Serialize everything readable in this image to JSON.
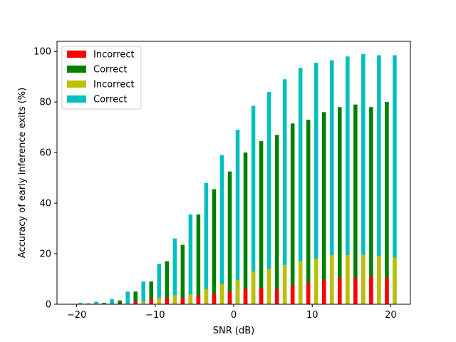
{
  "chart_data": {
    "type": "bar",
    "xlabel": "SNR (dB)",
    "ylabel": "Accuracy of early inference exits (%)",
    "xlim": [
      -22.5,
      22.5
    ],
    "ylim": [
      0,
      104
    ],
    "xticks": [
      -20,
      -10,
      0,
      10,
      20
    ],
    "yticks": [
      0,
      20,
      40,
      60,
      80,
      100
    ],
    "grid": false,
    "legend_position": "top-left",
    "x": [
      -20,
      -18,
      -16,
      -14,
      -12,
      -10,
      -8,
      -6,
      -4,
      -2,
      0,
      2,
      4,
      6,
      8,
      10,
      12,
      14,
      16,
      18,
      20
    ],
    "series": [
      {
        "name": "Incorrect",
        "color": "#ff0000",
        "values": [
          0,
          0,
          0,
          0.5,
          1,
          2,
          2.5,
          2.5,
          3.5,
          4,
          5,
          6,
          6.5,
          6,
          7.5,
          8.5,
          9.5,
          10.5,
          10.5,
          11,
          10.5
        ]
      },
      {
        "name": "Correct",
        "color": "#008000",
        "values": [
          0,
          0.3,
          0.5,
          1.5,
          5,
          9,
          17,
          23.5,
          35.5,
          45.5,
          52.5,
          60,
          64.5,
          67,
          71.5,
          73,
          76,
          78,
          79,
          78,
          80
        ]
      },
      {
        "name": "Incorrect",
        "color": "#bfbf00",
        "values": [
          0,
          0,
          0,
          0.3,
          1,
          2.5,
          3.5,
          4,
          6,
          8,
          9.5,
          13,
          14,
          15.5,
          17,
          18,
          19.5,
          19.5,
          19.5,
          19,
          18.5
        ]
      },
      {
        "name": "Correct",
        "color": "#00bfbf",
        "values": [
          0.5,
          1,
          2,
          5,
          9,
          16,
          26,
          35.5,
          48,
          59,
          69,
          78.5,
          84,
          89,
          93.5,
          95.5,
          96.5,
          98,
          99,
          98.5,
          98.5
        ]
      }
    ]
  }
}
